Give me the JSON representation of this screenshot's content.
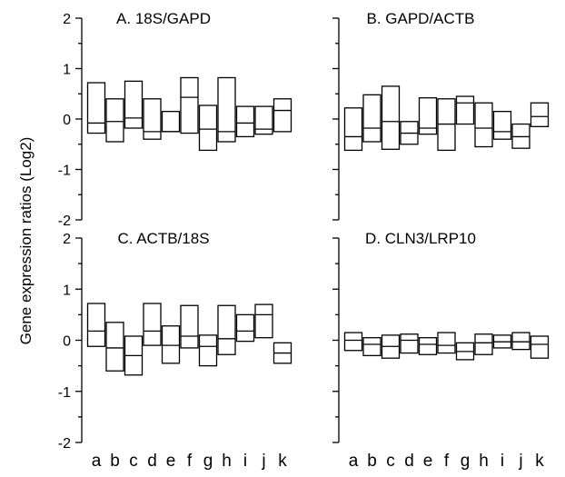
{
  "figure": {
    "ylabel": "Gene expression ratios (Log2)",
    "x_categories": [
      "a",
      "b",
      "c",
      "d",
      "e",
      "f",
      "g",
      "h",
      "i",
      "j",
      "k"
    ]
  },
  "chart_data": [
    {
      "type": "box",
      "title": "A. 18S/GAPD",
      "categories": [
        "a",
        "b",
        "c",
        "d",
        "e",
        "f",
        "g",
        "h",
        "i",
        "j",
        "k"
      ],
      "boxes": [
        {
          "q1": -0.28,
          "median": -0.08,
          "q3": 0.72
        },
        {
          "q1": -0.45,
          "median": -0.05,
          "q3": 0.4
        },
        {
          "q1": -0.18,
          "median": 0.02,
          "q3": 0.75
        },
        {
          "q1": -0.4,
          "median": -0.25,
          "q3": 0.4
        },
        {
          "q1": -0.25,
          "median": -0.25,
          "q3": 0.15
        },
        {
          "q1": -0.28,
          "median": 0.43,
          "q3": 0.82
        },
        {
          "q1": -0.62,
          "median": -0.2,
          "q3": 0.27
        },
        {
          "q1": -0.45,
          "median": -0.25,
          "q3": 0.82
        },
        {
          "q1": -0.35,
          "median": -0.08,
          "q3": 0.25
        },
        {
          "q1": -0.3,
          "median": -0.2,
          "q3": 0.25
        },
        {
          "q1": -0.25,
          "median": 0.17,
          "q3": 0.4
        }
      ],
      "ylim": [
        -2,
        2
      ],
      "yticks": [
        -2,
        -1,
        0,
        1,
        2
      ],
      "show_y_labels": true,
      "show_x_labels": false
    },
    {
      "type": "box",
      "title": "B. GAPD/ACTB",
      "categories": [
        "a",
        "b",
        "c",
        "d",
        "e",
        "f",
        "g",
        "h",
        "i",
        "j",
        "k"
      ],
      "boxes": [
        {
          "q1": -0.62,
          "median": -0.35,
          "q3": 0.22
        },
        {
          "q1": -0.45,
          "median": -0.18,
          "q3": 0.48
        },
        {
          "q1": -0.6,
          "median": -0.05,
          "q3": 0.65
        },
        {
          "q1": -0.5,
          "median": -0.28,
          "q3": -0.05
        },
        {
          "q1": -0.3,
          "median": -0.18,
          "q3": 0.42
        },
        {
          "q1": -0.62,
          "median": -0.1,
          "q3": 0.4
        },
        {
          "q1": -0.1,
          "median": 0.32,
          "q3": 0.45
        },
        {
          "q1": -0.55,
          "median": -0.18,
          "q3": 0.32
        },
        {
          "q1": -0.4,
          "median": -0.25,
          "q3": 0.15
        },
        {
          "q1": -0.58,
          "median": -0.35,
          "q3": -0.1
        },
        {
          "q1": -0.15,
          "median": 0.05,
          "q3": 0.32
        }
      ],
      "ylim": [
        -2,
        2
      ],
      "yticks": [
        -2,
        -1,
        0,
        1,
        2
      ],
      "show_y_labels": false,
      "show_x_labels": false
    },
    {
      "type": "box",
      "title": "C. ACTB/18S",
      "categories": [
        "a",
        "b",
        "c",
        "d",
        "e",
        "f",
        "g",
        "h",
        "i",
        "j",
        "k"
      ],
      "boxes": [
        {
          "q1": -0.12,
          "median": 0.18,
          "q3": 0.72
        },
        {
          "q1": -0.6,
          "median": -0.15,
          "q3": 0.35
        },
        {
          "q1": -0.68,
          "median": -0.3,
          "q3": 0.08
        },
        {
          "q1": -0.1,
          "median": 0.18,
          "q3": 0.72
        },
        {
          "q1": -0.45,
          "median": -0.1,
          "q3": 0.28
        },
        {
          "q1": -0.15,
          "median": 0.08,
          "q3": 0.68
        },
        {
          "q1": -0.5,
          "median": -0.12,
          "q3": 0.1
        },
        {
          "q1": -0.28,
          "median": 0.03,
          "q3": 0.68
        },
        {
          "q1": -0.02,
          "median": 0.18,
          "q3": 0.5
        },
        {
          "q1": 0.05,
          "median": 0.5,
          "q3": 0.7
        },
        {
          "q1": -0.45,
          "median": -0.25,
          "q3": -0.05
        }
      ],
      "ylim": [
        -2,
        2
      ],
      "yticks": [
        -2,
        -1,
        0,
        1,
        2
      ],
      "show_y_labels": true,
      "show_x_labels": true
    },
    {
      "type": "box",
      "title": "D. CLN3/LRP10",
      "categories": [
        "a",
        "b",
        "c",
        "d",
        "e",
        "f",
        "g",
        "h",
        "i",
        "j",
        "k"
      ],
      "boxes": [
        {
          "q1": -0.2,
          "median": 0.0,
          "q3": 0.15
        },
        {
          "q1": -0.3,
          "median": -0.08,
          "q3": 0.05
        },
        {
          "q1": -0.35,
          "median": -0.12,
          "q3": 0.1
        },
        {
          "q1": -0.25,
          "median": 0.0,
          "q3": 0.12
        },
        {
          "q1": -0.28,
          "median": -0.08,
          "q3": 0.05
        },
        {
          "q1": -0.25,
          "median": -0.1,
          "q3": 0.15
        },
        {
          "q1": -0.38,
          "median": -0.22,
          "q3": -0.05
        },
        {
          "q1": -0.28,
          "median": -0.05,
          "q3": 0.12
        },
        {
          "q1": -0.15,
          "median": -0.03,
          "q3": 0.1
        },
        {
          "q1": -0.18,
          "median": -0.03,
          "q3": 0.15
        },
        {
          "q1": -0.35,
          "median": -0.08,
          "q3": 0.08
        }
      ],
      "ylim": [
        -2,
        2
      ],
      "yticks": [
        -2,
        -1,
        0,
        1,
        2
      ],
      "show_y_labels": false,
      "show_x_labels": true
    }
  ]
}
